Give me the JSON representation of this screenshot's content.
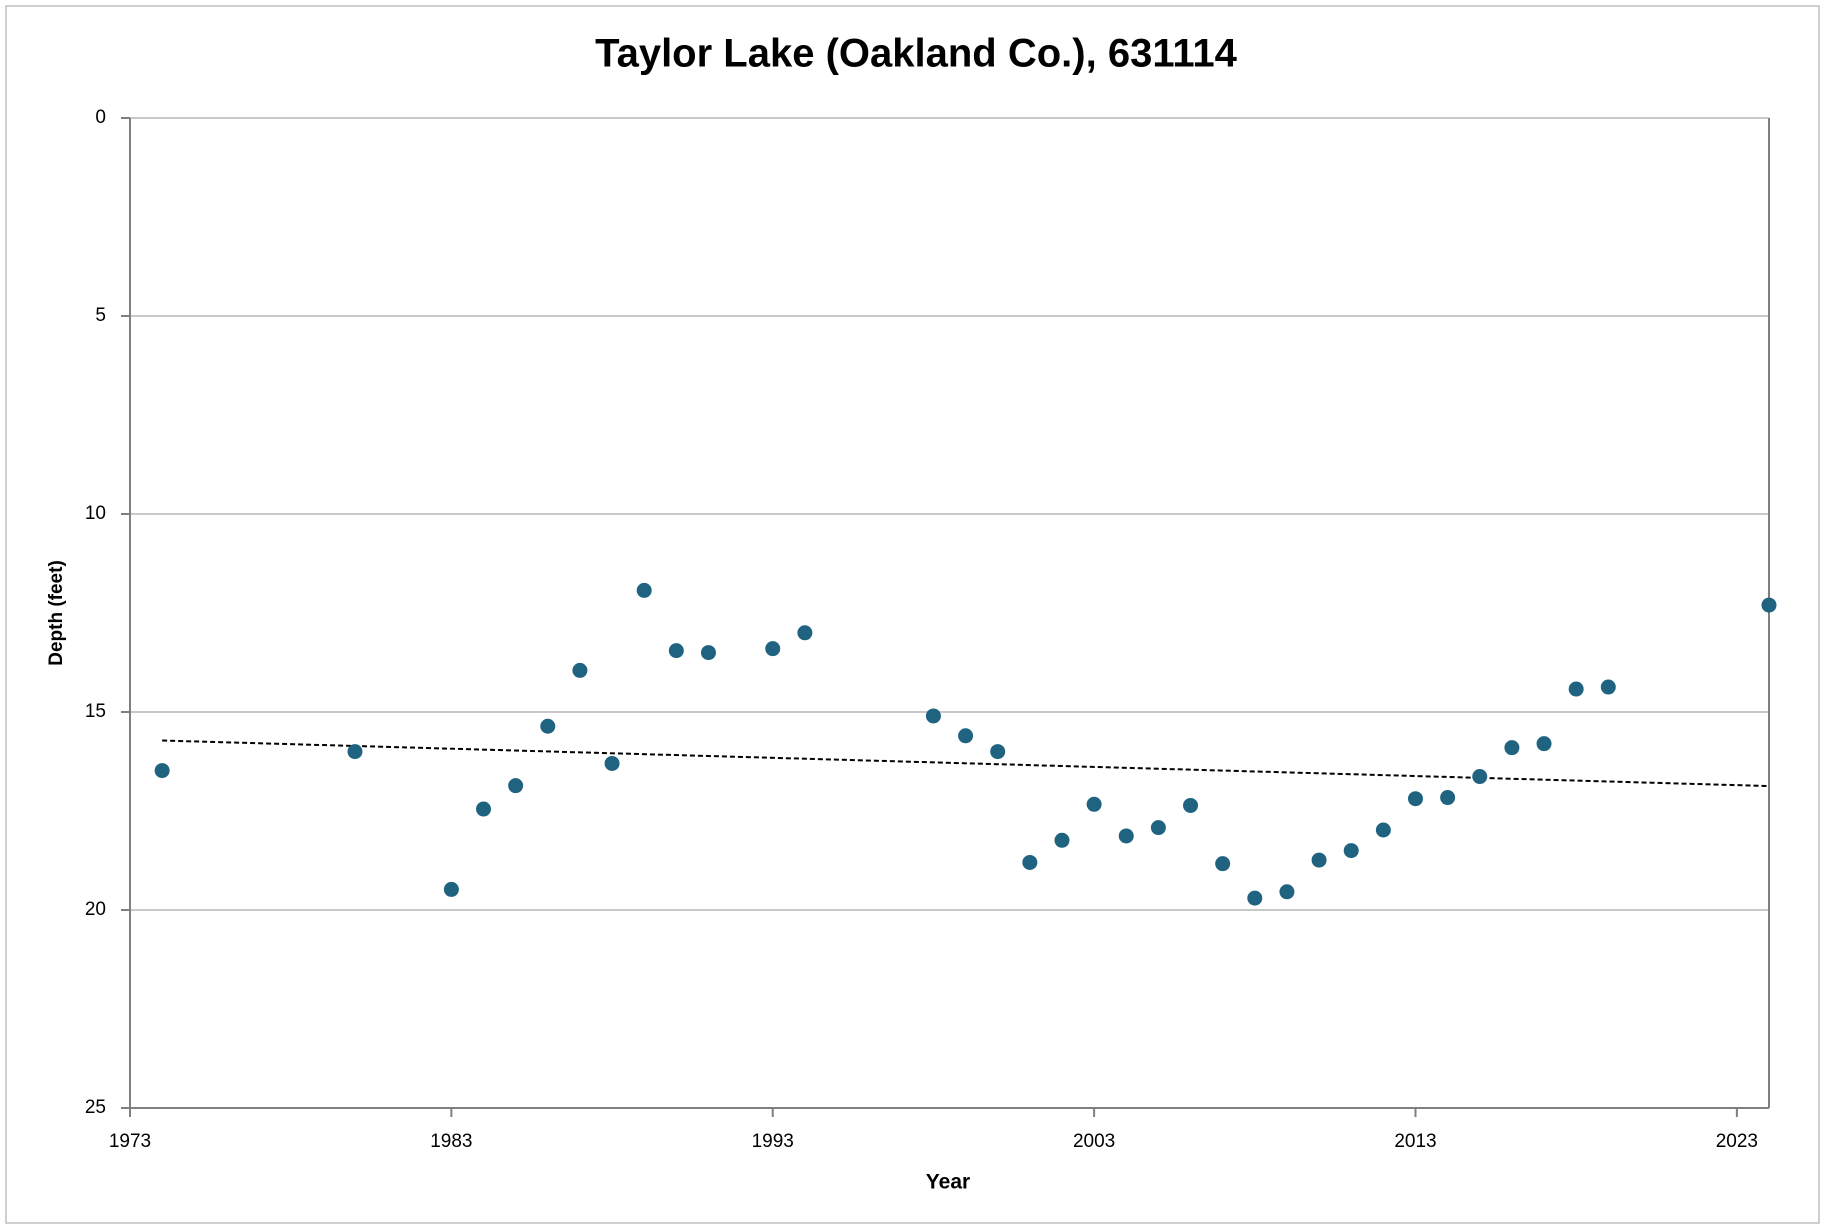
{
  "chart_data": {
    "type": "scatter",
    "title": "Taylor Lake (Oakland Co.), 631114",
    "x_label": "Year",
    "y_label": "Depth (feet)",
    "series": [
      {
        "name": "Depth",
        "color": "#1f6381",
        "x": [
          1974,
          1980,
          1983,
          1984,
          1985,
          1986,
          1987,
          1988,
          1989,
          1990,
          1991,
          1993,
          1994,
          1998,
          1999,
          2000,
          2001,
          2002,
          2003,
          2004,
          2005,
          2006,
          2007,
          2008,
          2009,
          2010,
          2011,
          2012,
          2013,
          2014,
          2015,
          2016,
          2017,
          2018,
          2019,
          2024
        ],
        "values": [
          16.48,
          16.0,
          19.48,
          17.45,
          16.86,
          15.36,
          13.95,
          16.3,
          11.93,
          13.45,
          13.5,
          13.4,
          13.0,
          15.1,
          15.6,
          16.0,
          18.8,
          18.24,
          17.33,
          18.13,
          17.92,
          17.36,
          18.83,
          19.7,
          19.54,
          18.74,
          18.5,
          17.98,
          17.19,
          17.16,
          16.63,
          15.9,
          15.8,
          14.42,
          14.37,
          12.3
        ]
      }
    ],
    "trendline": {
      "color": "#000000",
      "x": [
        1974,
        2024
      ],
      "values": [
        15.72,
        16.87
      ]
    },
    "xlim": [
      1973,
      2024
    ],
    "xticks": [
      1973,
      1983,
      1993,
      2003,
      2013,
      2023
    ],
    "ylim": [
      0,
      25
    ],
    "yticks": [
      0,
      5,
      10,
      15,
      20,
      25
    ],
    "y_reversed": true,
    "grid": true
  }
}
